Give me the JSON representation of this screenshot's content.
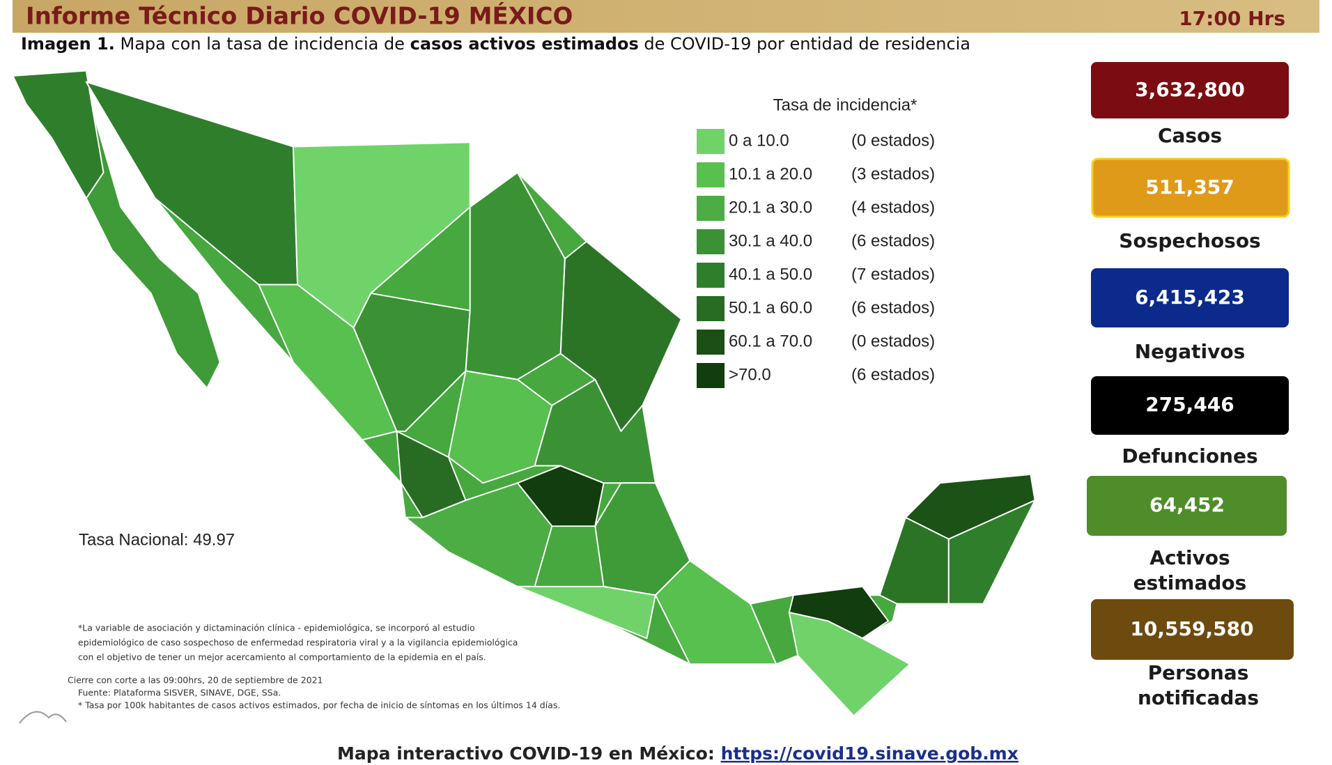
{
  "header": {
    "title": "Informe Técnico Diario COVID-19 MÉXICO",
    "time": "17:00 Hrs"
  },
  "subtitle": {
    "label": "Imagen 1.",
    "part1": "Mapa con la tasa de incidencia de",
    "bold": "casos activos estimados",
    "part2": "de COVID-19 por entidad de residencia"
  },
  "legend": {
    "title": "Tasa de incidencia*",
    "items": [
      {
        "range": "0  a  10.0",
        "count": "(0 estados)"
      },
      {
        "range": "10.1 a 20.0",
        "count": "(3 estados)"
      },
      {
        "range": "20.1 a 30.0",
        "count": "(4 estados)"
      },
      {
        "range": "30.1 a 40.0",
        "count": "(6 estados)"
      },
      {
        "range": "40.1 a 50.0",
        "count": "(7 estados)"
      },
      {
        "range": "50.1 a 60.0",
        "count": "(6 estados)"
      },
      {
        "range": "60.1 a 70.0",
        "count": "(0 estados)"
      },
      {
        "range": ">70.0",
        "count": "(6 estados)"
      }
    ]
  },
  "national_rate": "Tasa Nacional: 49.97",
  "notes": [
    "*La variable de asociación y dictaminación clínica - epidemiológica, se incorporó al estudio",
    "epidemiológico de caso sospechoso de enfermedad respiratoria viral y a la vigilancia epidemiológica",
    "con el objetivo de tener un mejor acercamiento al comportamiento de la epidemia en el país.",
    "Cierre con corte a las 09:00hrs, 20 de septiembre de 2021",
    "Fuente: Plataforma SISVER, SINAVE, DGE, SSa.",
    "* Tasa por 100k habitantes de casos activos estimados, por fecha de inicio de síntomas en los últimos 14 días."
  ],
  "stats": [
    {
      "value": "3,632,800",
      "label": "Casos"
    },
    {
      "value": "511,357",
      "label": "Sospechosos"
    },
    {
      "value": "6,415,423",
      "label": "Negativos"
    },
    {
      "value": "275,446",
      "label": "Defunciones"
    },
    {
      "value": "64,452",
      "label": [
        "Activos",
        "estimados"
      ]
    },
    {
      "value": "10,559,580",
      "label": [
        "Personas",
        "notificadas"
      ]
    }
  ],
  "footer": {
    "text": "Mapa interactivo COVID-19 en México:",
    "link": "https://covid19.sinave.gob.mx"
  }
}
